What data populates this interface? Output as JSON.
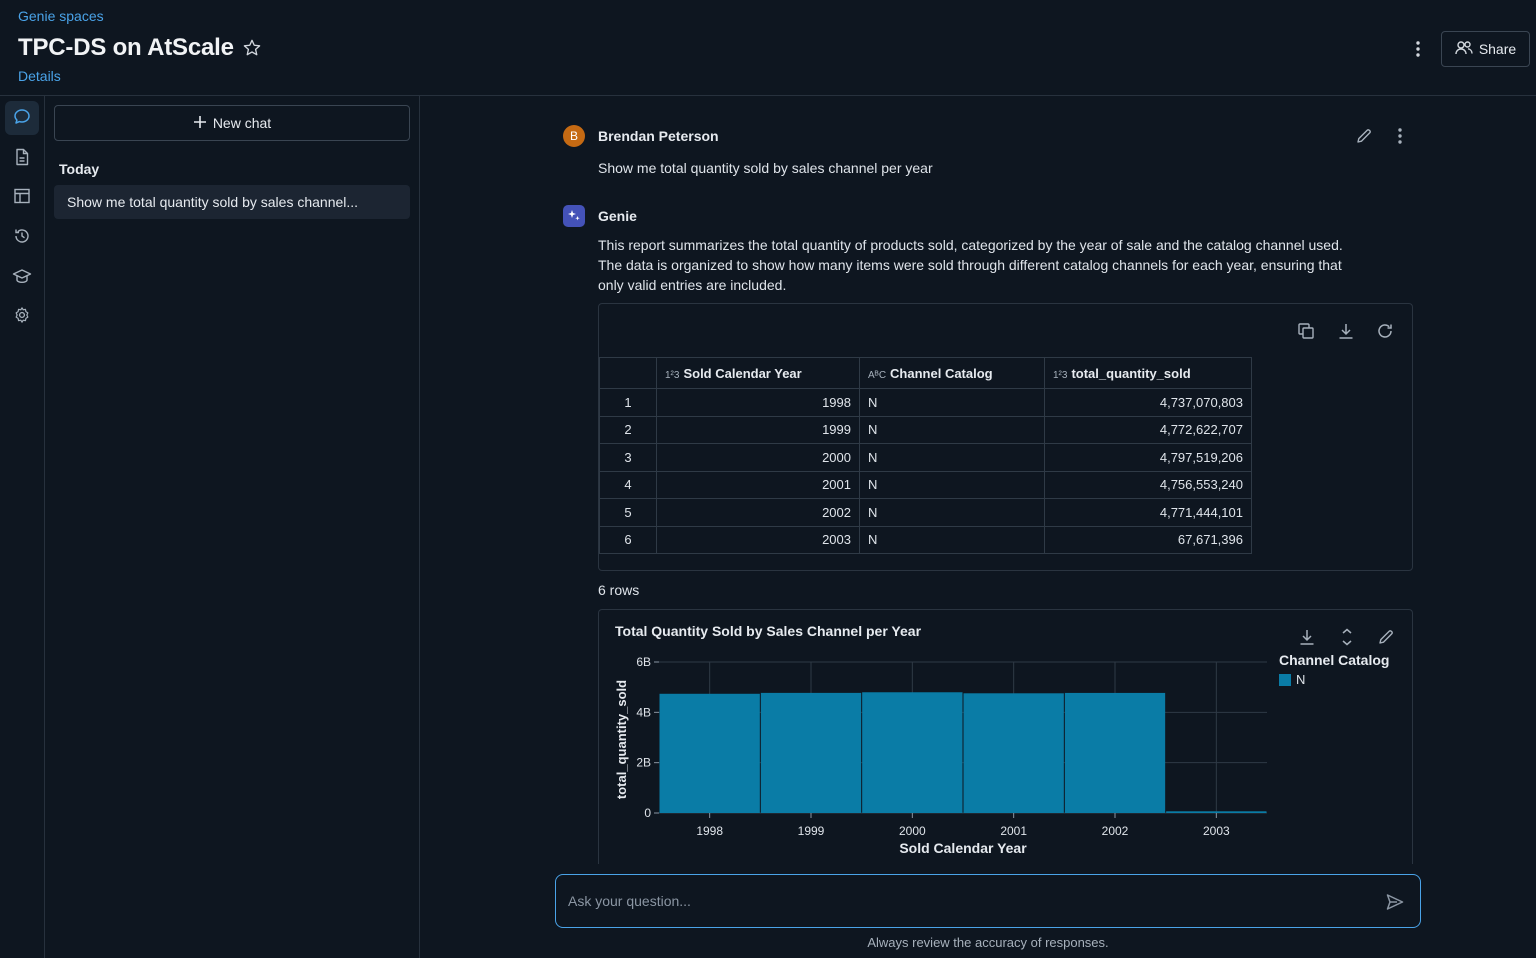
{
  "header": {
    "breadcrumb": "Genie spaces",
    "title": "TPC-DS on AtScale",
    "details_link": "Details",
    "share_label": "Share"
  },
  "rail": {
    "items": [
      "chat-icon",
      "document-icon",
      "table-icon",
      "history-icon",
      "graduation-cap-icon",
      "gear-icon"
    ],
    "active": "chat-icon"
  },
  "chatlist": {
    "new_chat_label": "New chat",
    "section_label": "Today",
    "items": [
      "Show me total quantity sold by sales channel..."
    ]
  },
  "messages": {
    "user": {
      "avatar_letter": "B",
      "name": "Brendan Peterson",
      "text": "Show me total quantity sold by sales channel per year"
    },
    "genie": {
      "name": "Genie",
      "lines": [
        "This report summarizes the total quantity of products sold, categorized by the year of sale and the catalog channel used.",
        "The data is organized to show how many items were sold through different catalog channels for each year, ensuring that",
        "only valid entries are included."
      ]
    }
  },
  "result_table": {
    "columns": [
      {
        "badge": "1²3",
        "label": "Sold Calendar Year"
      },
      {
        "badge": "AᴮC",
        "label": "Channel Catalog"
      },
      {
        "badge": "1²3",
        "label": "total_quantity_sold"
      }
    ],
    "rows": [
      [
        "1",
        "1998",
        "N",
        "4,737,070,803"
      ],
      [
        "2",
        "1999",
        "N",
        "4,772,622,707"
      ],
      [
        "3",
        "2000",
        "N",
        "4,797,519,206"
      ],
      [
        "4",
        "2001",
        "N",
        "4,756,553,240"
      ],
      [
        "5",
        "2002",
        "N",
        "4,771,444,101"
      ],
      [
        "6",
        "2003",
        "N",
        "67,671,396"
      ]
    ],
    "row_count_label": "6 rows"
  },
  "chart_data": {
    "type": "bar",
    "title": "Total Quantity Sold by Sales Channel per Year",
    "xlabel": "Sold Calendar Year",
    "ylabel": "total_quantity_sold",
    "categories": [
      "1998",
      "1999",
      "2000",
      "2001",
      "2002",
      "2003"
    ],
    "series": [
      {
        "name": "N",
        "values": [
          4737070803,
          4772622707,
          4797519206,
          4756553240,
          4771444101,
          67671396
        ]
      }
    ],
    "legend_title": "Channel Catalog",
    "y_ticks": [
      0,
      2000000000,
      4000000000,
      6000000000
    ],
    "y_tick_labels": [
      "0",
      "2B",
      "4B",
      "6B"
    ],
    "ylim": [
      0,
      6000000000
    ],
    "grid": true,
    "legend_position": "right",
    "bar_color": "#0a7ca6"
  },
  "input": {
    "placeholder": "Ask your question...",
    "disclaimer": "Always review the accuracy of responses."
  },
  "colors": {
    "background": "#0e1620",
    "accent": "#4aa3e8",
    "bar": "#0a7ca6",
    "user_avatar": "#c56a13",
    "genie_avatar": "#4452b8"
  }
}
